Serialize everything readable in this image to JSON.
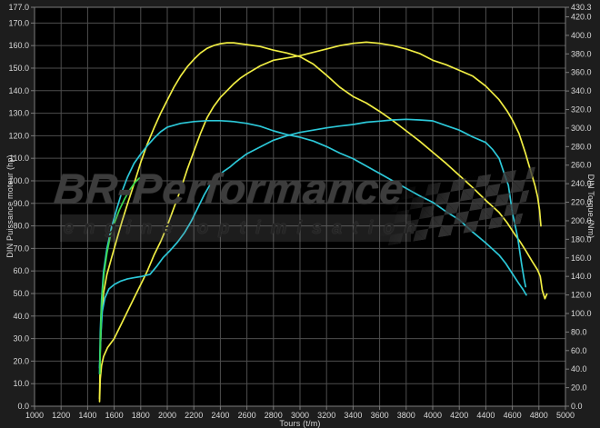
{
  "watermark": {
    "brand": "BR-Performance",
    "tagline": "engine optimisation"
  },
  "chart_data": {
    "type": "line",
    "title": "",
    "xlabel": "Tours (t/m)",
    "ylabel_left": "DIN Puissance moteur (hp)",
    "ylabel_right": "DIN Torque (Nm)",
    "x_range": [
      1000,
      5000
    ],
    "y_left_range": [
      0,
      177
    ],
    "y_right_range": [
      0,
      430.3
    ],
    "grid": true,
    "legend": "none",
    "plot_background": "#000000",
    "outer_background": "#1d1d1d",
    "grid_color": "#4e4e4e",
    "frame_color": "#7a7a7a",
    "tick_label_color": "#d9d9d9",
    "x_ticks": [
      1000,
      1200,
      1400,
      1600,
      1800,
      2000,
      2200,
      2400,
      2600,
      2800,
      3000,
      3200,
      3400,
      3600,
      3800,
      4000,
      4200,
      4400,
      4600,
      4800,
      5000
    ],
    "y_left_ticks": [
      177,
      170,
      160,
      150,
      140,
      130,
      120,
      110,
      100,
      90,
      80,
      70,
      60,
      50,
      40,
      30,
      20,
      10,
      0
    ],
    "y_right_ticks": [
      430.3,
      420,
      400,
      380,
      360,
      340,
      320,
      300,
      280,
      260,
      240,
      220,
      200,
      180,
      160,
      140,
      120,
      100,
      80,
      60,
      40,
      20,
      0
    ],
    "series": [
      {
        "name": "torque_tuned",
        "axis": "right",
        "unit": "Nm",
        "color": "#f0ed43",
        "peak": "392 Nm @ 2450 t/m",
        "points": [
          [
            1490,
            8
          ],
          [
            1495,
            60
          ],
          [
            1505,
            95
          ],
          [
            1520,
            122
          ],
          [
            1545,
            142
          ],
          [
            1580,
            160
          ],
          [
            1620,
            180
          ],
          [
            1660,
            200
          ],
          [
            1700,
            218
          ],
          [
            1750,
            240
          ],
          [
            1800,
            263
          ],
          [
            1850,
            283
          ],
          [
            1900,
            300
          ],
          [
            1950,
            316
          ],
          [
            2000,
            330
          ],
          [
            2050,
            344
          ],
          [
            2100,
            356
          ],
          [
            2150,
            366
          ],
          [
            2200,
            374
          ],
          [
            2250,
            381
          ],
          [
            2300,
            386
          ],
          [
            2350,
            389
          ],
          [
            2400,
            391
          ],
          [
            2450,
            392
          ],
          [
            2500,
            392
          ],
          [
            2600,
            390
          ],
          [
            2700,
            388
          ],
          [
            2800,
            384
          ],
          [
            2900,
            381
          ],
          [
            3000,
            377
          ],
          [
            3100,
            369
          ],
          [
            3200,
            357
          ],
          [
            3300,
            344
          ],
          [
            3400,
            334
          ],
          [
            3500,
            327
          ],
          [
            3600,
            318
          ],
          [
            3700,
            308
          ],
          [
            3800,
            297
          ],
          [
            3900,
            286
          ],
          [
            4000,
            274
          ],
          [
            4100,
            262
          ],
          [
            4200,
            249
          ],
          [
            4300,
            236
          ],
          [
            4400,
            222
          ],
          [
            4500,
            209
          ],
          [
            4560,
            198
          ],
          [
            4620,
            185
          ],
          [
            4660,
            177
          ],
          [
            4700,
            168
          ],
          [
            4750,
            156
          ],
          [
            4790,
            147
          ],
          [
            4810,
            140
          ],
          [
            4825,
            125
          ],
          [
            4845,
            116
          ],
          [
            4860,
            121
          ]
        ]
      },
      {
        "name": "power_tuned",
        "axis": "left",
        "unit": "hp",
        "color": "#f0ed43",
        "peak": "161.5 hp @ 3500 t/m",
        "points": [
          [
            1490,
            2
          ],
          [
            1495,
            12
          ],
          [
            1505,
            18
          ],
          [
            1520,
            22
          ],
          [
            1550,
            26
          ],
          [
            1600,
            30
          ],
          [
            1650,
            36
          ],
          [
            1700,
            42
          ],
          [
            1750,
            48
          ],
          [
            1800,
            54
          ],
          [
            1850,
            60
          ],
          [
            1900,
            67
          ],
          [
            1950,
            73
          ],
          [
            2000,
            80
          ],
          [
            2050,
            88
          ],
          [
            2100,
            96
          ],
          [
            2150,
            105
          ],
          [
            2200,
            113
          ],
          [
            2250,
            121
          ],
          [
            2300,
            128
          ],
          [
            2350,
            133
          ],
          [
            2400,
            137
          ],
          [
            2450,
            140
          ],
          [
            2500,
            143
          ],
          [
            2550,
            145.5
          ],
          [
            2600,
            147.5
          ],
          [
            2700,
            151
          ],
          [
            2800,
            153.5
          ],
          [
            2900,
            154.5
          ],
          [
            3000,
            155.5
          ],
          [
            3100,
            157
          ],
          [
            3200,
            158.5
          ],
          [
            3300,
            160
          ],
          [
            3400,
            161
          ],
          [
            3500,
            161.5
          ],
          [
            3600,
            161
          ],
          [
            3700,
            160
          ],
          [
            3800,
            158.5
          ],
          [
            3900,
            156.5
          ],
          [
            4000,
            153.5
          ],
          [
            4100,
            151.5
          ],
          [
            4200,
            149
          ],
          [
            4300,
            146.5
          ],
          [
            4400,
            142
          ],
          [
            4500,
            136
          ],
          [
            4560,
            131
          ],
          [
            4600,
            127
          ],
          [
            4650,
            121
          ],
          [
            4700,
            112
          ],
          [
            4740,
            104
          ],
          [
            4770,
            98
          ],
          [
            4790,
            93
          ],
          [
            4805,
            87
          ],
          [
            4815,
            80
          ]
        ]
      },
      {
        "name": "torque_stock",
        "axis": "right",
        "unit": "Nm",
        "color": "#2cc8d8",
        "peak": "308 Nm @ 2350 t/m",
        "points": [
          [
            1490,
            35
          ],
          [
            1495,
            80
          ],
          [
            1505,
            115
          ],
          [
            1520,
            145
          ],
          [
            1545,
            170
          ],
          [
            1580,
            193
          ],
          [
            1620,
            213
          ],
          [
            1660,
            232
          ],
          [
            1700,
            247
          ],
          [
            1750,
            262
          ],
          [
            1800,
            272
          ],
          [
            1850,
            281
          ],
          [
            1900,
            289
          ],
          [
            1950,
            296
          ],
          [
            2000,
            301
          ],
          [
            2100,
            305
          ],
          [
            2200,
            307
          ],
          [
            2300,
            308
          ],
          [
            2400,
            308
          ],
          [
            2500,
            307
          ],
          [
            2600,
            305
          ],
          [
            2700,
            302
          ],
          [
            2800,
            297
          ],
          [
            2900,
            293
          ],
          [
            3000,
            290
          ],
          [
            3100,
            286
          ],
          [
            3200,
            280
          ],
          [
            3300,
            273
          ],
          [
            3400,
            267
          ],
          [
            3500,
            259
          ],
          [
            3600,
            251
          ],
          [
            3700,
            243
          ],
          [
            3800,
            235
          ],
          [
            3900,
            227
          ],
          [
            4000,
            220
          ],
          [
            4100,
            210
          ],
          [
            4200,
            201
          ],
          [
            4300,
            188
          ],
          [
            4400,
            176
          ],
          [
            4500,
            163
          ],
          [
            4550,
            154
          ],
          [
            4600,
            143
          ],
          [
            4650,
            132
          ],
          [
            4680,
            126
          ],
          [
            4705,
            120
          ]
        ]
      },
      {
        "name": "power_stock",
        "axis": "left",
        "unit": "hp",
        "color": "#2cc8d8",
        "peak": "127.3 hp @ 3800 t/m",
        "points": [
          [
            1490,
            17
          ],
          [
            1500,
            32
          ],
          [
            1510,
            42
          ],
          [
            1530,
            48
          ],
          [
            1560,
            52
          ],
          [
            1600,
            54
          ],
          [
            1650,
            55.5
          ],
          [
            1700,
            56.5
          ],
          [
            1750,
            57
          ],
          [
            1800,
            57.5
          ],
          [
            1870,
            58.5
          ],
          [
            1920,
            62
          ],
          [
            1970,
            66
          ],
          [
            2020,
            69
          ],
          [
            2080,
            73
          ],
          [
            2130,
            77
          ],
          [
            2180,
            82
          ],
          [
            2230,
            88
          ],
          [
            2280,
            94
          ],
          [
            2320,
            98
          ],
          [
            2370,
            101
          ],
          [
            2420,
            104
          ],
          [
            2470,
            106
          ],
          [
            2520,
            108.5
          ],
          [
            2600,
            112
          ],
          [
            2700,
            115
          ],
          [
            2800,
            118
          ],
          [
            2900,
            120
          ],
          [
            3000,
            121.5
          ],
          [
            3100,
            122.5
          ],
          [
            3200,
            123.5
          ],
          [
            3300,
            124.3
          ],
          [
            3400,
            125
          ],
          [
            3500,
            126
          ],
          [
            3600,
            126.5
          ],
          [
            3700,
            127
          ],
          [
            3800,
            127.3
          ],
          [
            3900,
            127
          ],
          [
            4000,
            126.6
          ],
          [
            4100,
            124.5
          ],
          [
            4200,
            122.5
          ],
          [
            4300,
            119.5
          ],
          [
            4400,
            117
          ],
          [
            4450,
            114
          ],
          [
            4500,
            110
          ],
          [
            4540,
            103
          ],
          [
            4570,
            98
          ],
          [
            4600,
            86
          ],
          [
            4640,
            75
          ],
          [
            4670,
            63
          ],
          [
            4690,
            56
          ],
          [
            4700,
            53
          ]
        ]
      },
      {
        "name": "reference_green",
        "axis": "right",
        "unit": "Nm",
        "color": "#3bd74b",
        "peak": "",
        "points": [
          [
            1492,
            35
          ],
          [
            1496,
            70
          ],
          [
            1502,
            100
          ],
          [
            1512,
            125
          ],
          [
            1525,
            145
          ],
          [
            1545,
            165
          ],
          [
            1570,
            183
          ],
          [
            1600,
            197
          ],
          [
            1640,
            212
          ],
          [
            1680,
            224
          ],
          [
            1720,
            234
          ],
          [
            1760,
            242
          ],
          [
            1790,
            246
          ]
        ]
      }
    ]
  }
}
